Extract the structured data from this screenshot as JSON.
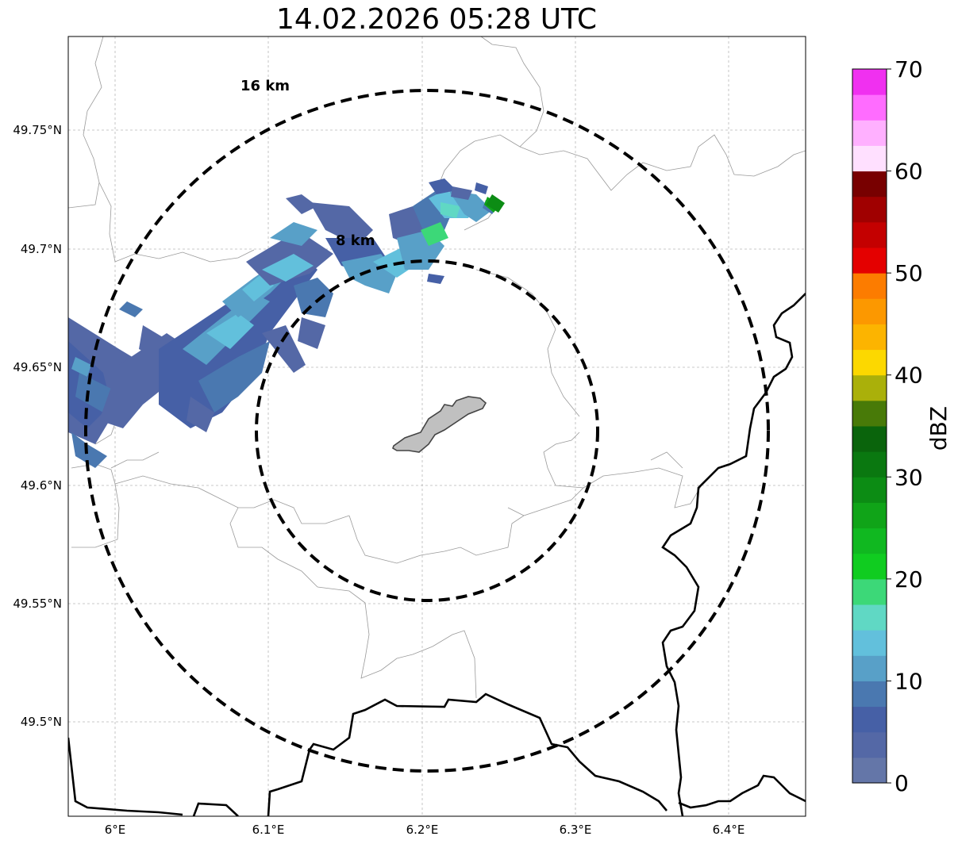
{
  "title": "14.02.2026 05:28 UTC",
  "map": {
    "lat_ticks": [
      "49.75°N",
      "49.7°N",
      "49.65°N",
      "49.6°N",
      "49.55°N",
      "49.5°N"
    ],
    "lon_ticks": [
      "6°E",
      "6.1°E",
      "6.2°E",
      "6.3°E",
      "6.4°E"
    ],
    "rings": [
      {
        "label": "16 km",
        "radius_km": 16
      },
      {
        "label": "8 km",
        "radius_km": 8
      }
    ]
  },
  "colorbar": {
    "label": "dBZ",
    "tick_labels": [
      "0",
      "10",
      "20",
      "30",
      "40",
      "50",
      "60",
      "70"
    ],
    "min": 0,
    "max": 70,
    "step": 2.5,
    "colors": [
      "#6476a8",
      "#5468a6",
      "#4660a6",
      "#4a78b0",
      "#58a0c8",
      "#62c0dc",
      "#60d8c4",
      "#3cd878",
      "#10cc20",
      "#10b820",
      "#10a418",
      "#0c8c14",
      "#0a7810",
      "#0a640c",
      "#487a08",
      "#aab00a",
      "#fcd800",
      "#fcb400",
      "#fc9800",
      "#fc7c00",
      "#e40000",
      "#c40000",
      "#a00000",
      "#780000",
      "#ffe0ff",
      "#ffb0ff",
      "#ff6cff",
      "#f030f0"
    ]
  }
}
